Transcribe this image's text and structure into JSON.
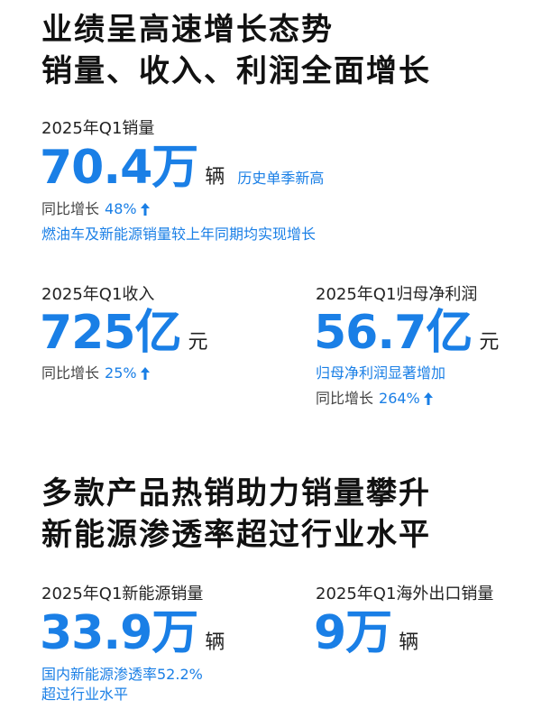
{
  "section1": {
    "headline_line1": "业绩呈高速增长态势",
    "headline_line2": "销量、收入、利润全面增长"
  },
  "sales": {
    "label": "2025年Q1销量",
    "value": "70.4万",
    "unit": "辆",
    "note": "历史单季新高",
    "yoy_label": "同比增长",
    "yoy_value": "48%",
    "detail": "燃油车及新能源销量较上年同期均实现增长"
  },
  "revenue": {
    "label": "2025年Q1收入",
    "value": "725亿",
    "unit": "元",
    "yoy_label": "同比增长",
    "yoy_value": "25%"
  },
  "profit": {
    "label": "2025年Q1归母净利润",
    "value": "56.7亿",
    "unit": "元",
    "note": "归母净利润显著增加",
    "yoy_label": "同比增长",
    "yoy_value": "264%"
  },
  "section2": {
    "headline_line1": "多款产品热销助力销量攀升",
    "headline_line2": "新能源渗透率超过行业水平"
  },
  "nev_sales": {
    "label": "2025年Q1新能源销量",
    "value": "33.9万",
    "unit": "辆",
    "detail_line1": "国内新能源渗透率52.2%",
    "detail_line2": "超过行业水平"
  },
  "export_sales": {
    "label": "2025年Q1海外出口销量",
    "value": "9万",
    "unit": "辆"
  },
  "colors": {
    "accent": "#1a7fe6",
    "text": "#222222"
  },
  "icons": {
    "up_arrow": "up-arrow-icon"
  }
}
